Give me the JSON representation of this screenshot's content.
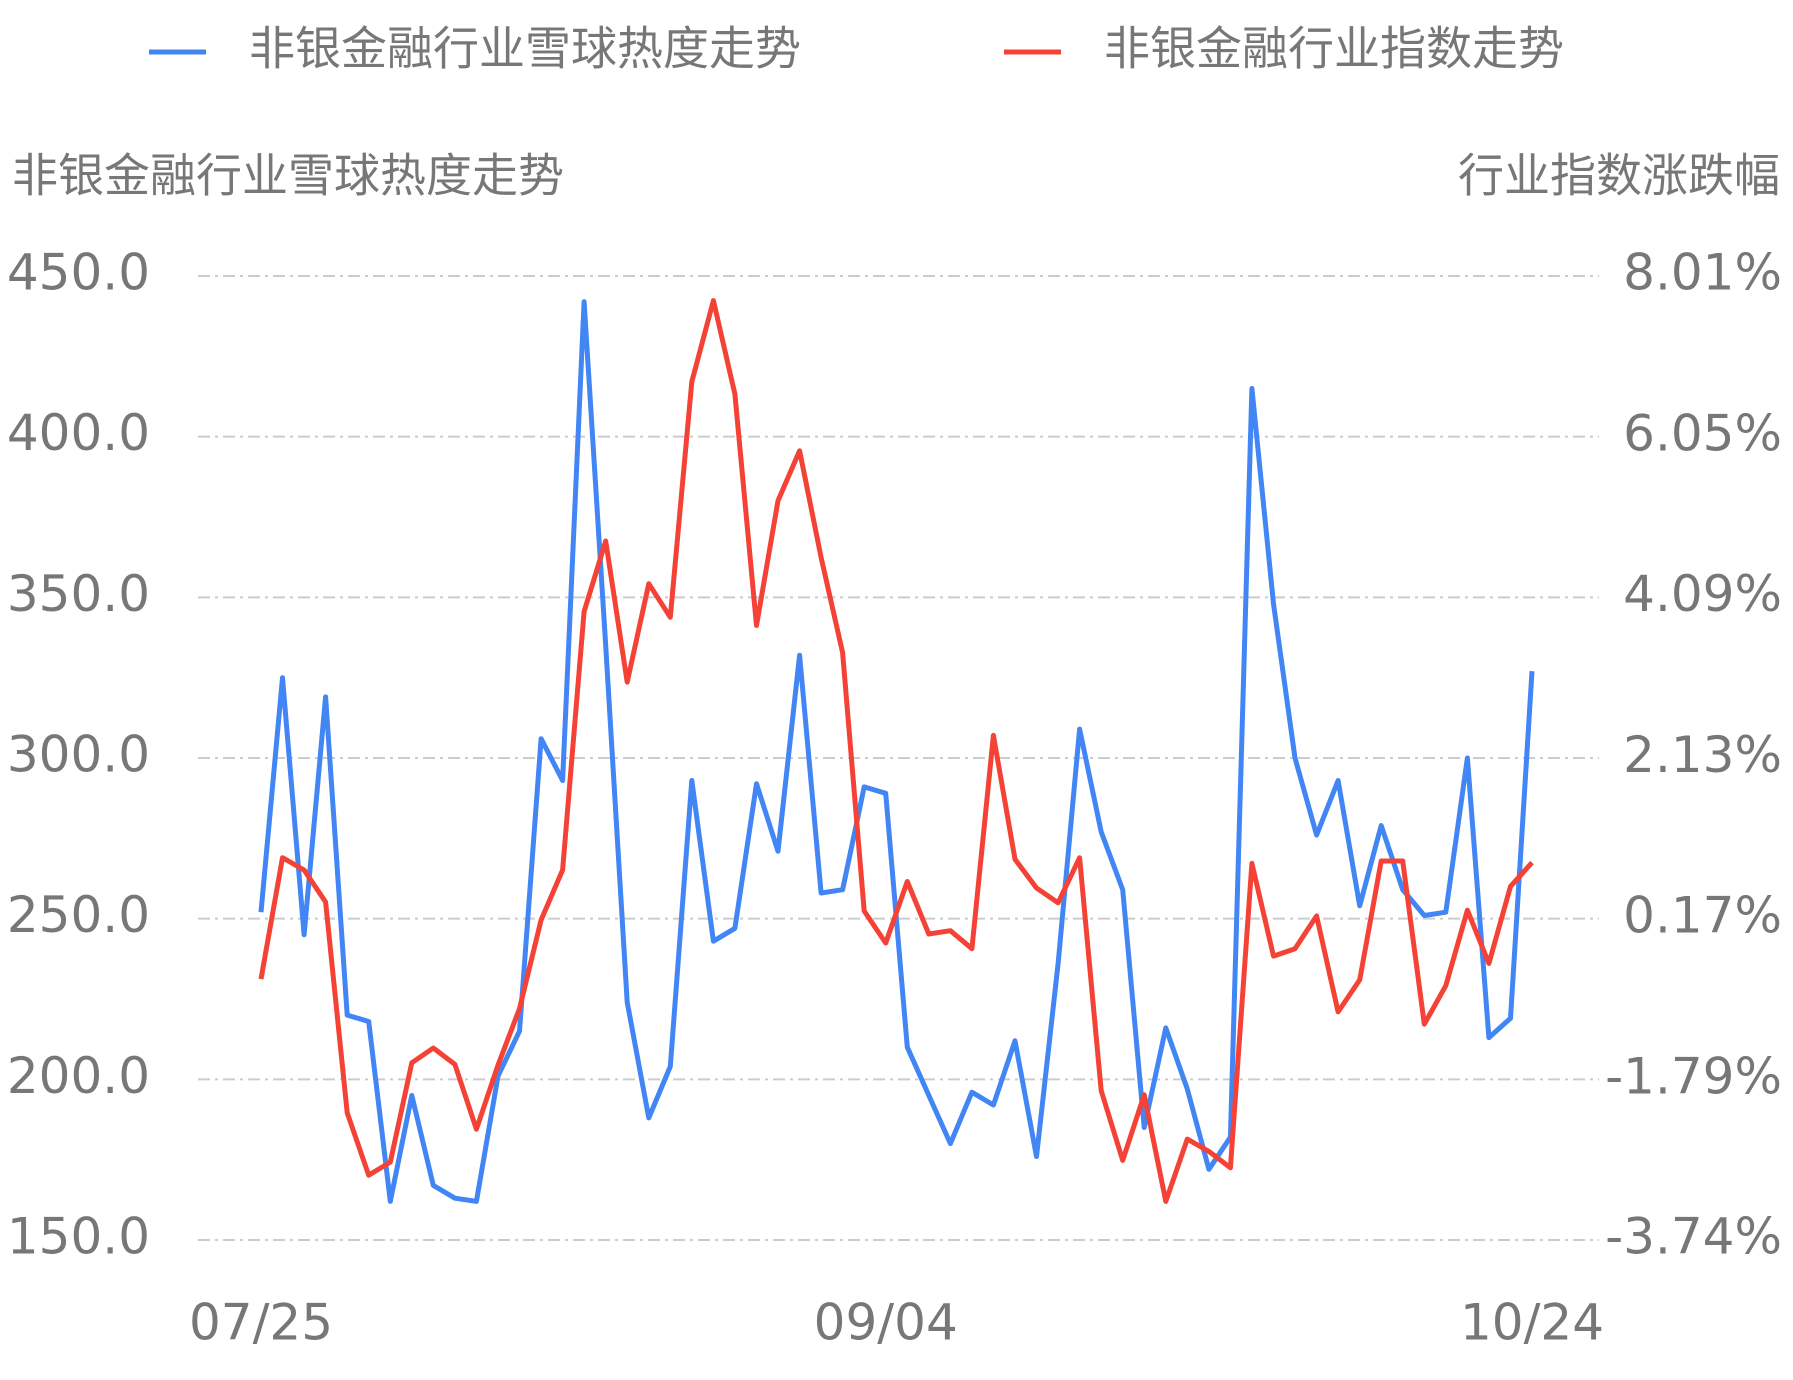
{
  "chart_data": {
    "type": "line",
    "ylabel": "非银金融行业雪球热度走势",
    "y2label": "行业指数涨跌幅",
    "categories": [
      "07/25",
      null,
      null,
      null,
      null,
      null,
      null,
      null,
      null,
      null,
      null,
      null,
      null,
      null,
      null,
      null,
      null,
      null,
      null,
      null,
      null,
      null,
      null,
      null,
      null,
      null,
      null,
      null,
      null,
      "09/04",
      null,
      null,
      null,
      null,
      null,
      null,
      null,
      null,
      null,
      null,
      null,
      null,
      null,
      null,
      null,
      null,
      null,
      null,
      null,
      null,
      null,
      null,
      null,
      null,
      null,
      null,
      null,
      null,
      null,
      "10/24"
    ],
    "series": [
      {
        "name": "非银金融行业雪球热度走势",
        "color": "#4285f4",
        "axis": "y",
        "values": [
          252,
          325,
          245,
          319,
          220,
          218,
          162,
          195,
          167,
          163,
          162,
          201,
          215,
          306,
          293,
          442,
          335,
          224,
          188,
          204,
          293,
          243,
          247,
          292,
          271,
          332,
          258,
          259,
          291,
          289,
          210,
          195,
          180,
          196,
          192,
          212,
          176,
          236,
          309,
          277,
          259,
          185,
          216,
          197,
          172,
          182,
          415,
          348,
          300,
          276,
          293,
          254,
          279,
          259,
          251,
          252,
          300,
          213,
          219,
          327
        ]
      },
      {
        "name": "非银金融行业指数走势",
        "color": "#f44336",
        "axis": "y2",
        "values": [
          -0.56,
          0.92,
          0.77,
          0.38,
          -2.19,
          -2.95,
          -2.79,
          -1.58,
          -1.4,
          -1.6,
          -2.39,
          -1.61,
          -0.92,
          0.16,
          0.77,
          3.92,
          4.78,
          3.06,
          4.26,
          3.85,
          6.72,
          7.71,
          6.57,
          3.75,
          5.27,
          5.88,
          4.58,
          3.42,
          0.27,
          -0.12,
          0.63,
          -0.01,
          0.03,
          -0.19,
          2.41,
          0.9,
          0.55,
          0.37,
          0.92,
          -1.92,
          -2.77,
          -1.97,
          -3.27,
          -2.51,
          -2.66,
          -2.86,
          0.85,
          -0.28,
          -0.19,
          0.21,
          -0.96,
          -0.57,
          0.88,
          0.88,
          -1.11,
          -0.64,
          0.28,
          -0.37,
          0.57,
          0.86
        ]
      }
    ],
    "ylim": [
      150,
      450
    ],
    "yticks": [
      {
        "value": 150,
        "label": "150.0"
      },
      {
        "value": 200,
        "label": "200.0"
      },
      {
        "value": 250,
        "label": "250.0"
      },
      {
        "value": 300,
        "label": "300.0"
      },
      {
        "value": 350,
        "label": "350.0"
      },
      {
        "value": 400,
        "label": "400.0"
      },
      {
        "value": 450,
        "label": "450.0"
      }
    ],
    "y2lim": [
      -3.74,
      8.01
    ],
    "y2ticks": [
      {
        "value": -3.74,
        "label": "-3.74%"
      },
      {
        "value": -1.79,
        "label": "-1.79%"
      },
      {
        "value": 0.17,
        "label": "0.17%"
      },
      {
        "value": 2.13,
        "label": "2.13%"
      },
      {
        "value": 4.09,
        "label": "4.09%"
      },
      {
        "value": 6.05,
        "label": "6.05%"
      },
      {
        "value": 8.01,
        "label": "8.01%"
      }
    ],
    "grid": true,
    "legend": "top"
  }
}
